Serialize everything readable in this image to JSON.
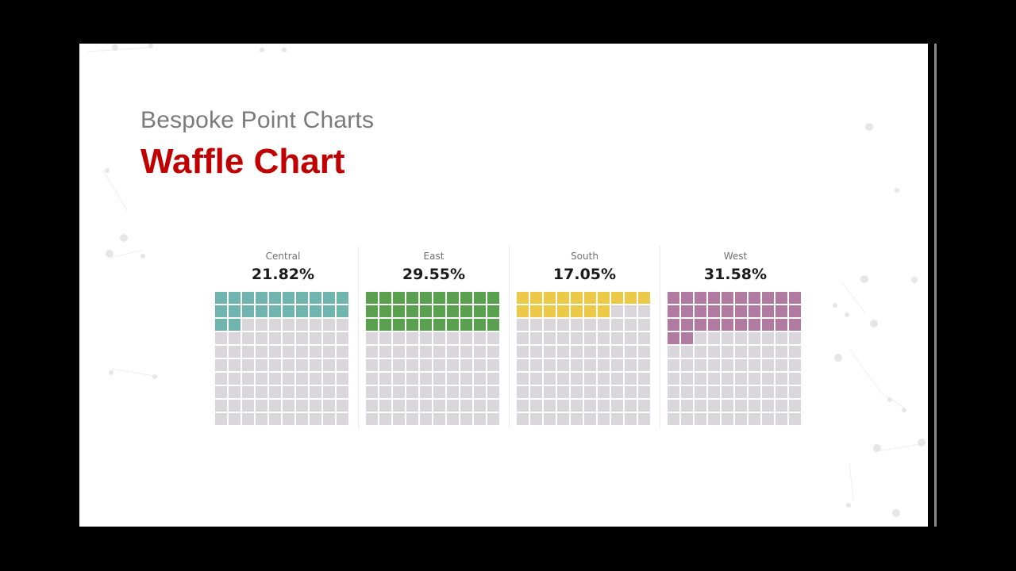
{
  "header": {
    "subtitle": "Bespoke Point Charts",
    "title": "Waffle Chart"
  },
  "colors": {
    "empty_cell": "#d9d7dc",
    "title_red": "#c00000",
    "Central": "#6fb5ad",
    "East": "#59a14f",
    "South": "#edc948",
    "West": "#b07aa1"
  },
  "panels": [
    {
      "region": "Central",
      "percent_label": "21.82%",
      "filled_cells": 22
    },
    {
      "region": "East",
      "percent_label": "29.55%",
      "filled_cells": 30
    },
    {
      "region": "South",
      "percent_label": "17.05%",
      "filled_cells": 17
    },
    {
      "region": "West",
      "percent_label": "31.58%",
      "filled_cells": 32
    }
  ],
  "chart_data": {
    "type": "waffle",
    "title": "Waffle Chart",
    "subtitle": "Bespoke Point Charts",
    "categories": [
      "Central",
      "East",
      "South",
      "West"
    ],
    "values": [
      21.82,
      29.55,
      17.05,
      31.58
    ],
    "value_unit": "%",
    "grid": {
      "rows": 10,
      "cols": 10,
      "total_cells": 100,
      "fill_order": "row-major, top-left first"
    },
    "filled_cells": [
      22,
      30,
      17,
      32
    ],
    "series_colors": [
      "#6fb5ad",
      "#59a14f",
      "#edc948",
      "#b07aa1"
    ],
    "legend": "none (region names shown above each grid)"
  }
}
